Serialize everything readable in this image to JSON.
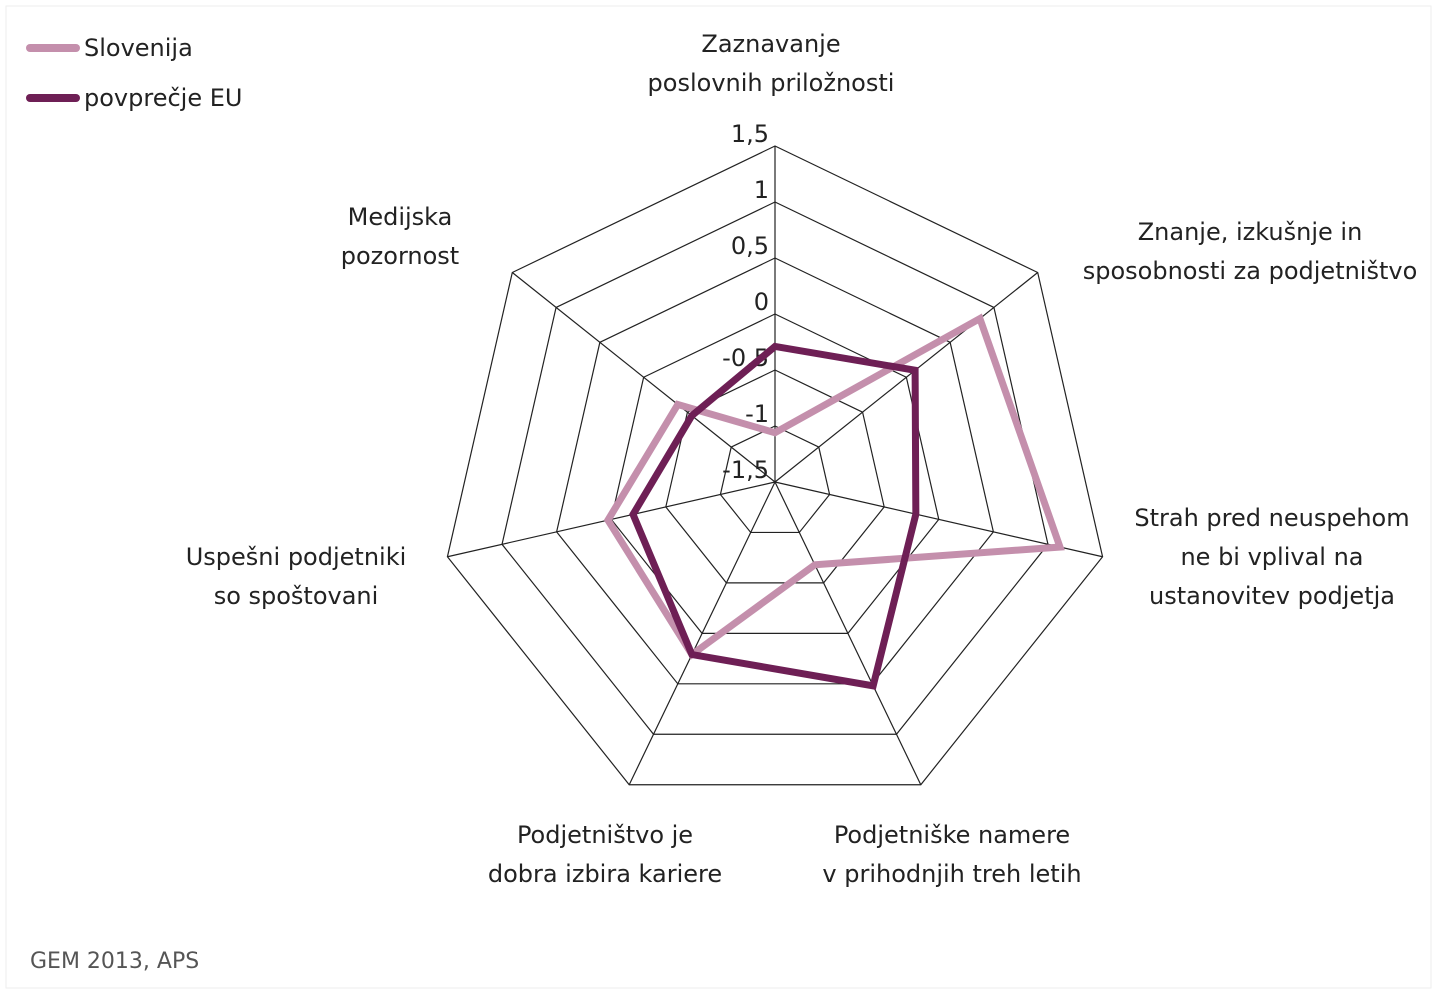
{
  "chart_data": {
    "type": "radar",
    "categories": [
      "Zaznavanje\nposlovnih priložnosti",
      "Znanje, izkušnje in\nsposobnosti za podjetništvo",
      "Strah pred neuspehom\nne bi vplival na\nustanovitev podjetja",
      "Podjetniške namere\nv prihodnjih treh letih",
      "Podjetništvo je\ndobra izbira kariere",
      "Uspešni podjetniki\nso spoštovani",
      "Medijska\npozornost"
    ],
    "series": [
      {
        "name": "Slovenija",
        "color": "#c48fac",
        "values": [
          -1.06,
          0.84,
          1.11,
          -0.68,
          0.21,
          0.03,
          -0.39
        ]
      },
      {
        "name": "povprečje EU",
        "color": "#6e1f55",
        "values": [
          -0.29,
          0.1,
          -0.21,
          0.52,
          0.21,
          -0.2,
          -0.55
        ]
      }
    ],
    "ylim": [
      -1.5,
      1.5
    ],
    "yticks": [
      {
        "value": -1.5,
        "label": "-1,5"
      },
      {
        "value": -1,
        "label": "-1"
      },
      {
        "value": -0.5,
        "label": "-0,5"
      },
      0,
      {
        "value": 0.5,
        "label": "0,5"
      },
      1,
      {
        "value": 1.5,
        "label": "1,5"
      }
    ],
    "grid": true,
    "legend": "upper left",
    "source": "GEM 2013, APS"
  }
}
